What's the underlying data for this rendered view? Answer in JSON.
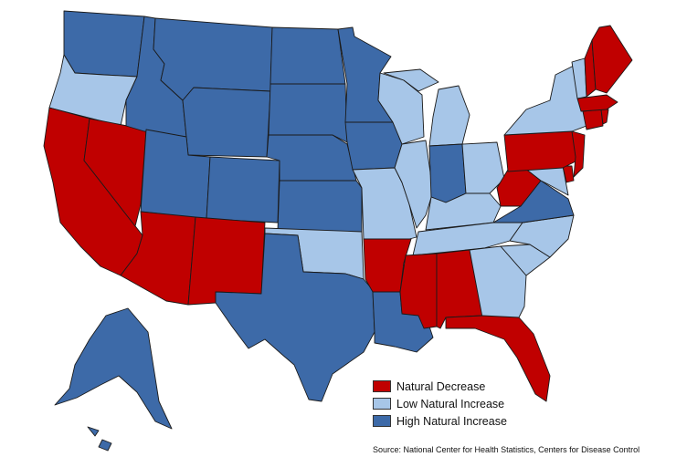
{
  "colors": {
    "natural_decrease": "#c00000",
    "low_natural_increase": "#a7c6e8",
    "high_natural_increase": "#3d6aa8"
  },
  "legend": [
    {
      "label": "Natural Decrease",
      "color_key": "natural_decrease"
    },
    {
      "label": "Low Natural Increase",
      "color_key": "low_natural_increase"
    },
    {
      "label": "High Natural Increase",
      "color_key": "high_natural_increase"
    }
  ],
  "source": "Source: National Center for Health Statistics, Centers for Disease Control",
  "states": {
    "WA": "high_natural_increase",
    "OR": "low_natural_increase",
    "CA": "natural_decrease",
    "NV": "natural_decrease",
    "ID": "high_natural_increase",
    "MT": "high_natural_increase",
    "WY": "high_natural_increase",
    "UT": "high_natural_increase",
    "AZ": "natural_decrease",
    "CO": "high_natural_increase",
    "NM": "natural_decrease",
    "ND": "high_natural_increase",
    "SD": "high_natural_increase",
    "NE": "high_natural_increase",
    "KS": "high_natural_increase",
    "OK": "low_natural_increase",
    "TX": "high_natural_increase",
    "MN": "high_natural_increase",
    "IA": "high_natural_increase",
    "MO": "low_natural_increase",
    "AR": "natural_decrease",
    "LA": "high_natural_increase",
    "WI": "low_natural_increase",
    "IL": "low_natural_increase",
    "MI": "low_natural_increase",
    "IN": "high_natural_increase",
    "OH": "low_natural_increase",
    "KY": "low_natural_increase",
    "TN": "low_natural_increase",
    "MS": "natural_decrease",
    "AL": "natural_decrease",
    "GA": "low_natural_increase",
    "FL": "natural_decrease",
    "SC": "low_natural_increase",
    "NC": "low_natural_increase",
    "VA": "high_natural_increase",
    "WV": "natural_decrease",
    "MD": "low_natural_increase",
    "DE": "natural_decrease",
    "PA": "natural_decrease",
    "NJ": "natural_decrease",
    "NY": "low_natural_increase",
    "CT": "natural_decrease",
    "RI": "natural_decrease",
    "MA": "natural_decrease",
    "VT": "low_natural_increase",
    "NH": "natural_decrease",
    "ME": "natural_decrease",
    "AK": "high_natural_increase",
    "HI": "high_natural_increase"
  }
}
